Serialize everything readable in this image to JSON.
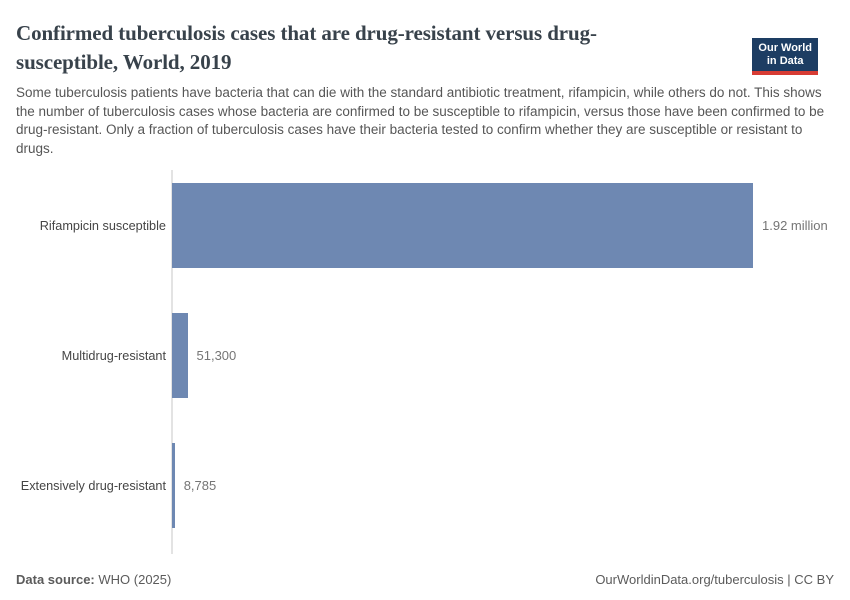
{
  "header": {
    "title": "Confirmed tuberculosis cases that are drug-resistant versus drug-susceptible, World, 2019",
    "subtitle": "Some tuberculosis patients have bacteria that can die with the standard antibiotic treatment, rifampicin, while others do not. This shows the number of tuberculosis cases whose bacteria are confirmed to be susceptible to rifampicin, versus those have been confirmed to be drug-resistant. Only a fraction of tuberculosis cases have their bacteria tested to confirm whether they are susceptible or resistant to drugs.",
    "logo": {
      "line1": "Our World",
      "line2": "in Data",
      "bg_color": "#1d3d63",
      "accent_color": "#d73c34"
    }
  },
  "chart_data": {
    "type": "bar",
    "orientation": "horizontal",
    "title": "Confirmed tuberculosis cases that are drug-resistant versus drug-susceptible, World, 2019",
    "categories": [
      "Rifampicin susceptible",
      "Multidrug-resistant",
      "Extensively drug-resistant"
    ],
    "values": [
      1920000,
      51300,
      8785
    ],
    "value_labels": [
      "1.92 million",
      "51,300",
      "8,785"
    ],
    "xlim": [
      0,
      1920000
    ],
    "grid": false,
    "legend": "none",
    "bar_color": "#6e88b2"
  },
  "footer": {
    "datasource_label": "Data source:",
    "datasource_value": "WHO (2025)",
    "url": "OurWorldinData.org/tuberculosis",
    "separator": " | ",
    "license": "CC BY"
  }
}
